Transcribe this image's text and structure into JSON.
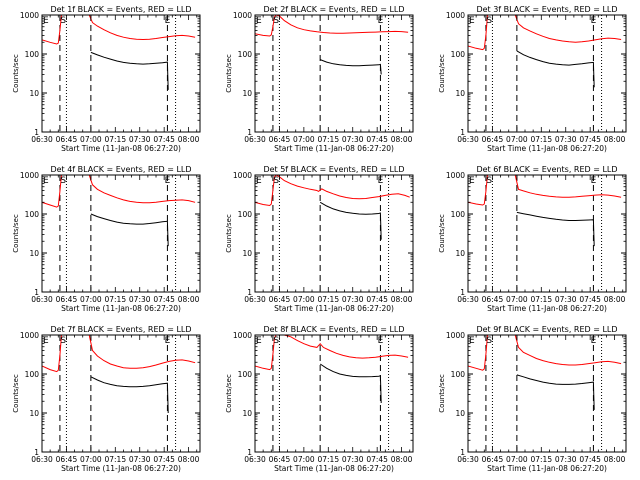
{
  "shared": {
    "xlabel": "Start Time (11-Jan-08 06:27:20)",
    "ylabel": "Counts/sec",
    "x_ticks": [
      "06:30",
      "06:45",
      "07:00",
      "07:15",
      "07:30",
      "07:45",
      "08:00"
    ],
    "y_ticks": [
      "1",
      "10",
      "100",
      "1000"
    ],
    "colors": {
      "events": "#000000",
      "lld": "#ff0000",
      "frame": "#000000"
    }
  },
  "chart_data": [
    {
      "type": "line",
      "title": "Det 1f BLACK = Events, RED = LLD",
      "x_axis_unit": "minutes since 06:30",
      "xlim": [
        0,
        97
      ],
      "ylim": [
        1,
        1000
      ],
      "yscale": "log",
      "markers": [
        {
          "label": "E",
          "x": 0
        },
        {
          "label": "S",
          "x": 13
        },
        {
          "label": "E",
          "x": 77
        }
      ],
      "dashed_lines_x": [
        11,
        30,
        77
      ],
      "dotted_lines_x": [
        15,
        82
      ],
      "series": [
        {
          "name": "Events",
          "color": "#000000",
          "x": [
            30,
            34,
            38,
            42,
            46,
            50,
            54,
            58,
            62,
            66,
            70,
            74,
            77,
            77.5
          ],
          "y": [
            110,
            95,
            83,
            74,
            66,
            61,
            58,
            56,
            55,
            56,
            58,
            60,
            62,
            12
          ]
        },
        {
          "name": "LLD",
          "color": "#ff0000",
          "x": [
            0,
            5,
            9,
            10,
            11,
            12,
            29,
            31,
            34,
            38,
            42,
            46,
            50,
            54,
            58,
            62,
            66,
            70,
            74,
            78,
            82,
            86,
            90,
            94
          ],
          "y": [
            230,
            200,
            180,
            190,
            400,
            1000,
            1000,
            640,
            520,
            420,
            350,
            300,
            270,
            250,
            240,
            235,
            240,
            250,
            265,
            280,
            295,
            300,
            290,
            270
          ]
        }
      ]
    },
    {
      "type": "line",
      "title": "Det 2f BLACK = Events, RED = LLD",
      "x_axis_unit": "minutes since 06:30",
      "xlim": [
        0,
        97
      ],
      "ylim": [
        1,
        1000
      ],
      "yscale": "log",
      "markers": [
        {
          "label": "E",
          "x": 0
        },
        {
          "label": "S",
          "x": 13
        },
        {
          "label": "E",
          "x": 77
        }
      ],
      "dashed_lines_x": [
        11,
        40,
        77
      ],
      "dotted_lines_x": [
        15,
        82
      ],
      "series": [
        {
          "name": "Events",
          "color": "#000000",
          "x": [
            40,
            44,
            48,
            52,
            56,
            60,
            64,
            68,
            72,
            76,
            77,
            77.5
          ],
          "y": [
            72,
            62,
            56,
            53,
            51,
            50,
            50,
            51,
            52,
            53,
            54,
            30
          ]
        },
        {
          "name": "LLD",
          "color": "#ff0000",
          "x": [
            0,
            5,
            9,
            10,
            11,
            12,
            13,
            15,
            18,
            22,
            26,
            30,
            34,
            38,
            42,
            46,
            50,
            54,
            58,
            62,
            66,
            70,
            74,
            78,
            82,
            86,
            90,
            94
          ],
          "y": [
            330,
            300,
            290,
            310,
            500,
            900,
            1000,
            940,
            720,
            560,
            470,
            420,
            390,
            370,
            355,
            345,
            340,
            340,
            345,
            350,
            355,
            360,
            365,
            370,
            375,
            380,
            375,
            360
          ]
        }
      ]
    },
    {
      "type": "line",
      "title": "Det 3f BLACK = Events, RED = LLD",
      "x_axis_unit": "minutes since 06:30",
      "xlim": [
        0,
        97
      ],
      "ylim": [
        1,
        1000
      ],
      "yscale": "log",
      "markers": [
        {
          "label": "E",
          "x": 0
        },
        {
          "label": "S",
          "x": 13
        },
        {
          "label": "E",
          "x": 77
        }
      ],
      "dashed_lines_x": [
        11,
        30,
        77
      ],
      "dotted_lines_x": [
        15,
        82
      ],
      "series": [
        {
          "name": "Events",
          "color": "#000000",
          "x": [
            30,
            34,
            38,
            42,
            46,
            50,
            54,
            58,
            62,
            66,
            70,
            74,
            77,
            77.5
          ],
          "y": [
            120,
            96,
            82,
            72,
            64,
            58,
            55,
            53,
            52,
            54,
            56,
            59,
            61,
            14
          ]
        },
        {
          "name": "LLD",
          "color": "#ff0000",
          "x": [
            0,
            5,
            9,
            10,
            11,
            12,
            29,
            31,
            34,
            38,
            42,
            46,
            50,
            54,
            58,
            62,
            66,
            70,
            74,
            78,
            82,
            86,
            90,
            94
          ],
          "y": [
            160,
            140,
            130,
            140,
            300,
            1000,
            1000,
            600,
            470,
            390,
            330,
            285,
            250,
            230,
            215,
            205,
            200,
            205,
            215,
            230,
            245,
            255,
            250,
            235
          ]
        }
      ]
    },
    {
      "type": "line",
      "title": "Det 4f BLACK = Events, RED = LLD",
      "x_axis_unit": "minutes since 06:30",
      "xlim": [
        0,
        97
      ],
      "ylim": [
        1,
        1000
      ],
      "yscale": "log",
      "markers": [
        {
          "label": "E",
          "x": 0
        },
        {
          "label": "S",
          "x": 13
        },
        {
          "label": "E",
          "x": 77
        }
      ],
      "dashed_lines_x": [
        11,
        30,
        77
      ],
      "dotted_lines_x": [
        15,
        82
      ],
      "series": [
        {
          "name": "Events",
          "color": "#000000",
          "x": [
            30,
            34,
            38,
            42,
            46,
            50,
            54,
            58,
            62,
            66,
            70,
            74,
            77,
            77.5
          ],
          "y": [
            100,
            86,
            76,
            68,
            62,
            58,
            56,
            55,
            55,
            57,
            60,
            63,
            65,
            15
          ]
        },
        {
          "name": "LLD",
          "color": "#ff0000",
          "x": [
            0,
            5,
            9,
            10,
            11,
            12,
            29,
            31,
            34,
            38,
            42,
            46,
            50,
            54,
            58,
            62,
            66,
            70,
            74,
            78,
            82,
            86,
            90,
            94
          ],
          "y": [
            200,
            170,
            150,
            160,
            380,
            1000,
            1000,
            560,
            430,
            350,
            300,
            260,
            230,
            210,
            200,
            195,
            195,
            200,
            210,
            220,
            225,
            230,
            220,
            200
          ]
        }
      ]
    },
    {
      "type": "line",
      "title": "Det 5f BLACK = Events, RED = LLD",
      "x_axis_unit": "minutes since 06:30",
      "xlim": [
        0,
        97
      ],
      "ylim": [
        1,
        1000
      ],
      "yscale": "log",
      "markers": [
        {
          "label": "E",
          "x": 0
        },
        {
          "label": "S",
          "x": 13
        },
        {
          "label": "E",
          "x": 77
        }
      ],
      "dashed_lines_x": [
        11,
        40,
        77
      ],
      "dotted_lines_x": [
        15,
        82
      ],
      "series": [
        {
          "name": "Events",
          "color": "#000000",
          "x": [
            40,
            44,
            48,
            52,
            56,
            60,
            64,
            68,
            72,
            76,
            77,
            77.5
          ],
          "y": [
            200,
            160,
            135,
            120,
            110,
            104,
            100,
            99,
            100,
            103,
            106,
            22
          ]
        },
        {
          "name": "LLD",
          "color": "#ff0000",
          "x": [
            0,
            5,
            9,
            10,
            11,
            12,
            13,
            15,
            18,
            22,
            26,
            30,
            34,
            38,
            39,
            41,
            44,
            48,
            52,
            56,
            60,
            64,
            68,
            72,
            76,
            80,
            84,
            88,
            92,
            95
          ],
          "y": [
            200,
            175,
            165,
            180,
            400,
            900,
            1000,
            900,
            720,
            600,
            520,
            470,
            430,
            400,
            380,
            440,
            380,
            330,
            290,
            265,
            250,
            245,
            250,
            265,
            280,
            300,
            320,
            330,
            300,
            270
          ]
        }
      ]
    },
    {
      "type": "line",
      "title": "Det 6f BLACK = Events, RED = LLD",
      "x_axis_unit": "minutes since 06:30",
      "xlim": [
        0,
        97
      ],
      "ylim": [
        1,
        1000
      ],
      "yscale": "log",
      "markers": [
        {
          "label": "E",
          "x": 0
        },
        {
          "label": "S",
          "x": 13
        },
        {
          "label": "E",
          "x": 77
        }
      ],
      "dashed_lines_x": [
        11,
        30,
        77
      ],
      "dotted_lines_x": [
        15,
        82
      ],
      "series": [
        {
          "name": "Events",
          "color": "#000000",
          "x": [
            30,
            34,
            38,
            42,
            46,
            50,
            54,
            58,
            62,
            66,
            70,
            74,
            77,
            77.5
          ],
          "y": [
            110,
            102,
            95,
            88,
            82,
            77,
            73,
            70,
            68,
            68,
            69,
            70,
            71,
            15
          ]
        },
        {
          "name": "LLD",
          "color": "#ff0000",
          "x": [
            0,
            5,
            9,
            10,
            11,
            12,
            29,
            31,
            34,
            38,
            42,
            46,
            50,
            54,
            58,
            62,
            66,
            70,
            74,
            78,
            82,
            86,
            90,
            94
          ],
          "y": [
            200,
            180,
            170,
            180,
            380,
            1000,
            1000,
            430,
            390,
            350,
            320,
            300,
            285,
            275,
            270,
            270,
            275,
            285,
            295,
            305,
            310,
            305,
            290,
            270
          ]
        }
      ]
    },
    {
      "type": "line",
      "title": "Det 7f BLACK = Events, RED = LLD",
      "x_axis_unit": "minutes since 06:30",
      "xlim": [
        0,
        97
      ],
      "ylim": [
        1,
        1000
      ],
      "yscale": "log",
      "markers": [
        {
          "label": "E",
          "x": 0
        },
        {
          "label": "S",
          "x": 13
        },
        {
          "label": "E",
          "x": 77
        }
      ],
      "dashed_lines_x": [
        11,
        30,
        77
      ],
      "dotted_lines_x": [
        15,
        82
      ],
      "series": [
        {
          "name": "Events",
          "color": "#000000",
          "x": [
            30,
            34,
            38,
            42,
            46,
            50,
            54,
            58,
            62,
            66,
            70,
            74,
            77,
            77.5
          ],
          "y": [
            85,
            70,
            60,
            54,
            50,
            48,
            47,
            47,
            48,
            50,
            53,
            56,
            58,
            10
          ]
        },
        {
          "name": "LLD",
          "color": "#ff0000",
          "x": [
            0,
            5,
            9,
            10,
            11,
            12,
            29,
            31,
            34,
            38,
            42,
            46,
            50,
            54,
            58,
            62,
            66,
            70,
            74,
            78,
            82,
            86,
            90,
            94
          ],
          "y": [
            160,
            130,
            115,
            125,
            300,
            1000,
            1000,
            400,
            290,
            220,
            180,
            160,
            145,
            140,
            140,
            145,
            155,
            170,
            190,
            210,
            225,
            230,
            215,
            195
          ]
        }
      ]
    },
    {
      "type": "line",
      "title": "Det 8f BLACK = Events, RED = LLD",
      "x_axis_unit": "minutes since 06:30",
      "xlim": [
        0,
        97
      ],
      "ylim": [
        1,
        1000
      ],
      "yscale": "log",
      "markers": [
        {
          "label": "E",
          "x": 0
        },
        {
          "label": "S",
          "x": 13
        },
        {
          "label": "E",
          "x": 77
        }
      ],
      "dashed_lines_x": [
        11,
        40,
        77
      ],
      "dotted_lines_x": [
        15,
        82
      ],
      "series": [
        {
          "name": "Events",
          "color": "#000000",
          "x": [
            40,
            44,
            48,
            52,
            56,
            60,
            64,
            68,
            72,
            76,
            77,
            77.5
          ],
          "y": [
            180,
            140,
            115,
            100,
            92,
            87,
            85,
            85,
            86,
            88,
            90,
            18
          ]
        },
        {
          "name": "LLD",
          "color": "#ff0000",
          "x": [
            0,
            5,
            9,
            10,
            11,
            12,
            13,
            15,
            18,
            22,
            26,
            30,
            34,
            38,
            40,
            42,
            46,
            50,
            54,
            58,
            62,
            66,
            70,
            74,
            78,
            82,
            86,
            90,
            94
          ],
          "y": [
            160,
            140,
            130,
            140,
            320,
            850,
            1000,
            1000,
            1000,
            900,
            720,
            600,
            520,
            480,
            600,
            480,
            400,
            340,
            300,
            275,
            260,
            255,
            260,
            270,
            285,
            300,
            305,
            290,
            270
          ]
        }
      ]
    },
    {
      "type": "line",
      "title": "Det 9f BLACK = Events, RED = LLD",
      "x_axis_unit": "minutes since 06:30",
      "xlim": [
        0,
        97
      ],
      "ylim": [
        1,
        1000
      ],
      "yscale": "log",
      "markers": [
        {
          "label": "E",
          "x": 0
        },
        {
          "label": "S",
          "x": 13
        },
        {
          "label": "E",
          "x": 77
        }
      ],
      "dashed_lines_x": [
        11,
        30,
        77
      ],
      "dotted_lines_x": [
        15,
        82
      ],
      "series": [
        {
          "name": "Events",
          "color": "#000000",
          "x": [
            30,
            34,
            38,
            42,
            46,
            50,
            54,
            58,
            62,
            66,
            70,
            74,
            77,
            77.5
          ],
          "y": [
            95,
            85,
            75,
            68,
            62,
            58,
            55,
            54,
            54,
            55,
            57,
            60,
            62,
            12
          ]
        },
        {
          "name": "LLD",
          "color": "#ff0000",
          "x": [
            0,
            5,
            9,
            10,
            11,
            12,
            29,
            31,
            34,
            38,
            42,
            46,
            50,
            54,
            58,
            62,
            66,
            70,
            74,
            78,
            82,
            86,
            90,
            94
          ],
          "y": [
            160,
            140,
            125,
            135,
            320,
            1000,
            1000,
            480,
            360,
            300,
            250,
            220,
            200,
            185,
            175,
            170,
            170,
            175,
            185,
            195,
            205,
            210,
            200,
            185
          ]
        }
      ]
    }
  ]
}
